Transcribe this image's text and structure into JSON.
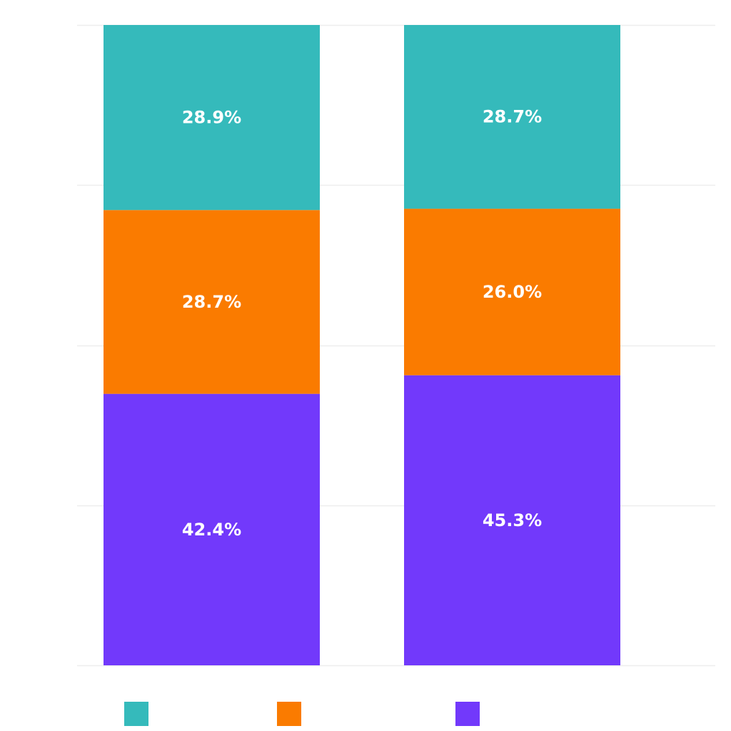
{
  "chart_data": {
    "type": "bar",
    "stacked": true,
    "normalized": true,
    "categories": [
      "",
      ""
    ],
    "series": [
      {
        "values": [
          42.4,
          45.3
        ],
        "labels": [
          "42.4%",
          "45.3%"
        ],
        "color": "#7239fb"
      },
      {
        "values": [
          28.7,
          26.0
        ],
        "labels": [
          "28.7%",
          "26.0%"
        ],
        "color": "#fa7b00"
      },
      {
        "values": [
          28.9,
          28.7
        ],
        "labels": [
          "28.9%",
          "28.7%"
        ],
        "color": "#35babb"
      }
    ],
    "ylim": [
      0,
      100
    ],
    "grid": true,
    "legend_position": "bottom",
    "legend": [
      {
        "color": "#35babb"
      },
      {
        "color": "#fa7b00"
      },
      {
        "color": "#7239fb"
      }
    ]
  }
}
